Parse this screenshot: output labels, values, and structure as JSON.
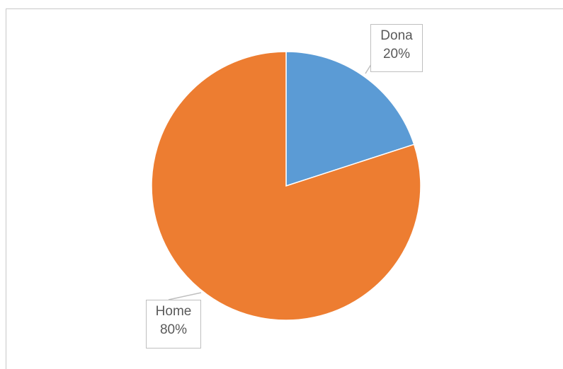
{
  "chart_data": {
    "type": "pie",
    "categories": [
      "Dona",
      "Home"
    ],
    "values": [
      20,
      80
    ],
    "data_labels": [
      {
        "category": "Dona",
        "percent": "20%"
      },
      {
        "category": "Home",
        "percent": "80%"
      }
    ],
    "colors": [
      "#5b9bd5",
      "#ed7d31"
    ],
    "label_border_color": "#bfbfbf",
    "label_text_color": "#595959",
    "leader_line_color": "#bfbfbf",
    "start_angle_deg": 0,
    "direction": "clockwise"
  }
}
